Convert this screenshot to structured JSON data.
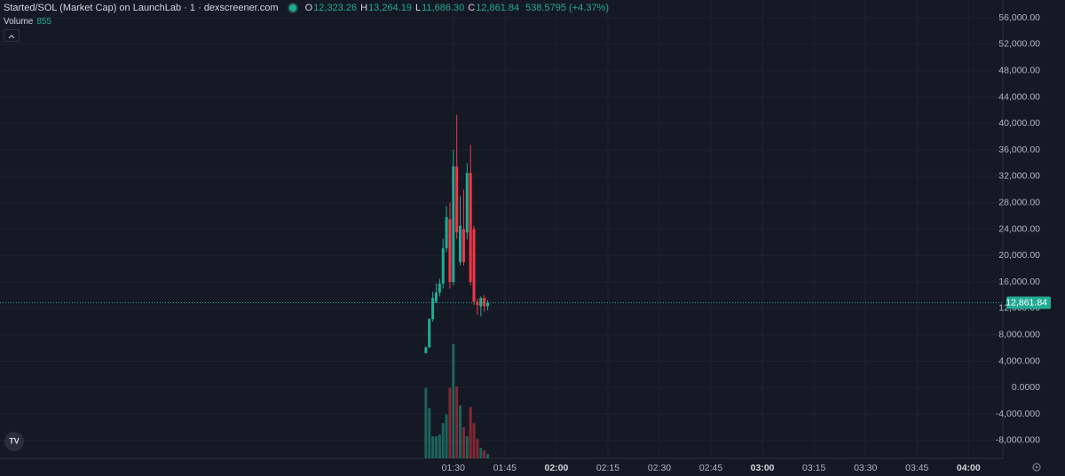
{
  "chart_data": {
    "type": "candlestick",
    "title": "Started/SOL (Market Cap) on LaunchLab · 1 · dexscreener.com",
    "header_values": [
      {
        "key": "O",
        "value": "12,323.26"
      },
      {
        "key": "H",
        "value": "13,264.19"
      },
      {
        "key": "L",
        "value": "11,686.30"
      },
      {
        "key": "C",
        "value": "12,861.84"
      }
    ],
    "change": "538.5795 (+4.37%)",
    "volume_label": "Volume",
    "volume_last": "855",
    "up_color": "#22ab94",
    "down_color": "#f23645",
    "x": [
      "01:22",
      "01:23",
      "01:24",
      "01:25",
      "01:26",
      "01:27",
      "01:28",
      "01:29",
      "01:30",
      "01:31",
      "01:32",
      "01:33",
      "01:34",
      "01:35",
      "01:36",
      "01:37",
      "01:38",
      "01:39",
      "01:40"
    ],
    "open": [
      5270,
      6080,
      10370,
      13000,
      14400,
      15750,
      21100,
      25500,
      16000,
      33500,
      19000,
      24000,
      23500,
      32500,
      24000,
      13000,
      12300,
      13600,
      12323.26
    ],
    "high": [
      6300,
      10500,
      14500,
      15800,
      16500,
      22500,
      27500,
      28000,
      36000,
      41300,
      29000,
      30000,
      34000,
      36800,
      24500,
      13500,
      13800,
      14000,
      13264.19
    ],
    "low": [
      5100,
      6000,
      10000,
      12800,
      13800,
      15000,
      20500,
      15000,
      15500,
      22500,
      18500,
      18500,
      22500,
      15500,
      12500,
      11000,
      10800,
      11500,
      11686.3
    ],
    "close": [
      6080,
      10370,
      13590,
      14400,
      15750,
      21100,
      25800,
      16000,
      33500,
      23500,
      24500,
      19000,
      32500,
      16000,
      13000,
      12500,
      13600,
      12323.26,
      12861.84
    ],
    "volume": [
      13600,
      9700,
      4250,
      4250,
      4600,
      6800,
      8500,
      13600,
      22100,
      13900,
      10200,
      6000,
      4250,
      9900,
      6800,
      3700,
      2000,
      1500,
      855
    ],
    "vlim": [
      0,
      22800
    ],
    "xlim": [
      "23:18",
      "04:10"
    ],
    "xticks": [
      "01:30",
      "01:45",
      "02:00",
      "02:15",
      "02:30",
      "02:45",
      "03:00",
      "03:15",
      "03:30",
      "03:45",
      "04:00"
    ],
    "ylim": [
      -10700,
      58700
    ],
    "yticks": [
      {
        "value": 56000,
        "label": "56,000.00"
      },
      {
        "value": 52000,
        "label": "52,000.00"
      },
      {
        "value": 48000,
        "label": "48,000.00"
      },
      {
        "value": 44000,
        "label": "44,000.00"
      },
      {
        "value": 40000,
        "label": "40,000.00"
      },
      {
        "value": 36000,
        "label": "36,000.00"
      },
      {
        "value": 32000,
        "label": "32,000.00"
      },
      {
        "value": 28000,
        "label": "28,000.00"
      },
      {
        "value": 24000,
        "label": "24,000.00"
      },
      {
        "value": 20000,
        "label": "20,000.00"
      },
      {
        "value": 16000,
        "label": "16,000.00"
      },
      {
        "value": 12000,
        "label": "12,000.00"
      },
      {
        "value": 8000,
        "label": "8,000.000"
      },
      {
        "value": 4000,
        "label": "4,000.000"
      },
      {
        "value": 0,
        "label": "0.0000"
      },
      {
        "value": -4000,
        "label": "-4,000.000"
      },
      {
        "value": -8000,
        "label": "-8,000.000"
      }
    ],
    "last_price": {
      "value": 12861.84,
      "label": "12,861.84"
    },
    "grid": true
  }
}
